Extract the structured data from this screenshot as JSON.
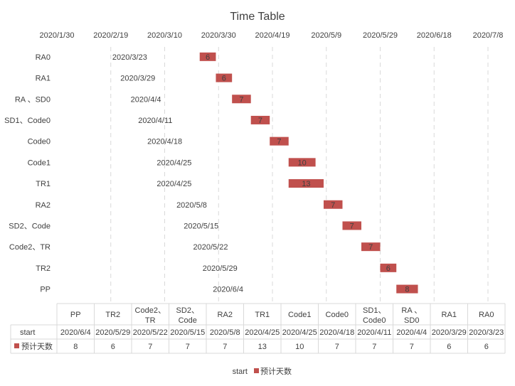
{
  "chart_data": {
    "type": "bar",
    "orientation": "horizontal",
    "stacked": true,
    "title": "Time Table",
    "x_axis": {
      "type": "date",
      "position": "top",
      "min": "2020/1/30",
      "max": "2020/7/8",
      "tick_labels": [
        "2020/1/30",
        "2020/2/19",
        "2020/3/10",
        "2020/3/30",
        "2020/4/19",
        "2020/5/9",
        "2020/5/29",
        "2020/6/18",
        "2020/7/8"
      ],
      "gridlines": "dashed"
    },
    "categories": [
      "RA0",
      "RA1",
      "RA 、SD0",
      "SD1、Code0",
      "Code0",
      "Code1",
      "TR1",
      "RA2",
      "SD2、Code",
      "Code2、TR",
      "TR2",
      "PP"
    ],
    "series": [
      {
        "name": "start",
        "visible": false,
        "values": [
          "2020/3/23",
          "2020/3/29",
          "2020/4/4",
          "2020/4/11",
          "2020/4/18",
          "2020/4/25",
          "2020/4/25",
          "2020/5/8",
          "2020/5/15",
          "2020/5/22",
          "2020/5/29",
          "2020/6/4"
        ]
      },
      {
        "name": "预计天数",
        "color": "#c0504d",
        "values": [
          6,
          6,
          7,
          7,
          7,
          10,
          13,
          7,
          7,
          7,
          6,
          8
        ]
      }
    ],
    "data_table": {
      "columns": [
        "PP",
        "TR2",
        "Code2、TR",
        "SD2、Code",
        "RA2",
        "TR1",
        "Code1",
        "Code0",
        "SD1、Code0",
        "RA 、SD0",
        "RA1",
        "RA0"
      ],
      "rows": [
        {
          "label": "start",
          "values": [
            "2020/6/4",
            "2020/5/29",
            "2020/5/22",
            "2020/5/15",
            "2020/5/8",
            "2020/4/25",
            "2020/4/25",
            "2020/4/18",
            "2020/4/11",
            "2020/4/4",
            "2020/3/29",
            "2020/3/23"
          ]
        },
        {
          "label": "预计天数",
          "values": [
            "8",
            "6",
            "7",
            "7",
            "7",
            "13",
            "10",
            "7",
            "7",
            "7",
            "6",
            "6"
          ]
        }
      ]
    },
    "legend": {
      "position": "bottom",
      "entries": [
        "start",
        "预计天数"
      ]
    }
  }
}
